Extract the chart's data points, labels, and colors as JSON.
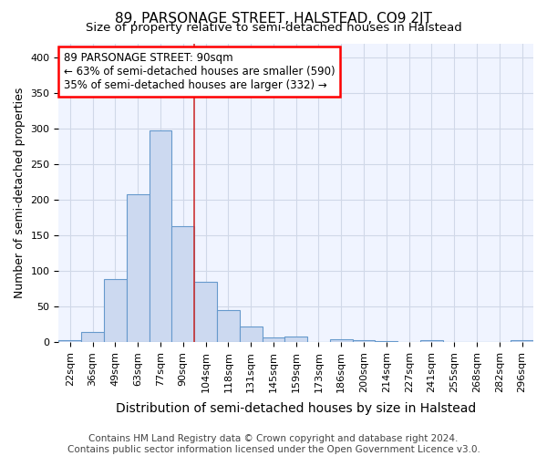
{
  "title": "89, PARSONAGE STREET, HALSTEAD, CO9 2JT",
  "subtitle": "Size of property relative to semi-detached houses in Halstead",
  "xlabel": "Distribution of semi-detached houses by size in Halstead",
  "ylabel": "Number of semi-detached properties",
  "bar_color": "#ccd9f0",
  "bar_edge_color": "#6699cc",
  "vline_color": "#cc3333",
  "background_color": "#f0f4ff",
  "grid_color": "#d0d8e8",
  "fig_background": "#ffffff",
  "categories": [
    "22sqm",
    "36sqm",
    "49sqm",
    "63sqm",
    "77sqm",
    "90sqm",
    "104sqm",
    "118sqm",
    "131sqm",
    "145sqm",
    "159sqm",
    "173sqm",
    "186sqm",
    "200sqm",
    "214sqm",
    "227sqm",
    "241sqm",
    "255sqm",
    "268sqm",
    "282sqm",
    "296sqm"
  ],
  "values": [
    3,
    14,
    88,
    208,
    298,
    163,
    85,
    45,
    22,
    7,
    8,
    0,
    4,
    3,
    1,
    0,
    2,
    0,
    0,
    0,
    3
  ],
  "vline_position": 5.5,
  "annotation_text": "89 PARSONAGE STREET: 90sqm\n← 63% of semi-detached houses are smaller (590)\n35% of semi-detached houses are larger (332) →",
  "ylim": [
    0,
    420
  ],
  "yticks": [
    0,
    50,
    100,
    150,
    200,
    250,
    300,
    350,
    400
  ],
  "footer": "Contains HM Land Registry data © Crown copyright and database right 2024.\nContains public sector information licensed under the Open Government Licence v3.0.",
  "title_fontsize": 11,
  "subtitle_fontsize": 9.5,
  "xlabel_fontsize": 10,
  "ylabel_fontsize": 9,
  "tick_fontsize": 8,
  "annotation_fontsize": 8.5,
  "footer_fontsize": 7.5
}
